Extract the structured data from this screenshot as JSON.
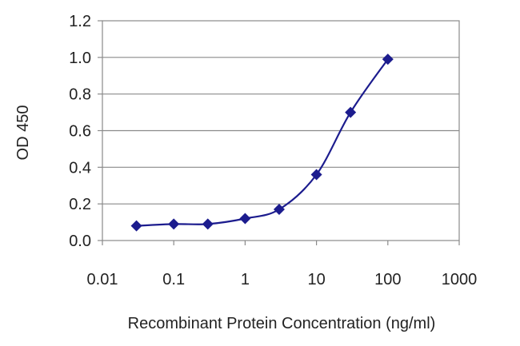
{
  "chart_data": {
    "type": "line",
    "xlabel": "Recombinant Protein Concentration (ng/ml)",
    "ylabel": "OD 450",
    "x_scale": "log",
    "xlim": [
      0.01,
      1000
    ],
    "ylim": [
      0.0,
      1.2
    ],
    "x_ticks": [
      {
        "value": 0.01,
        "label": "0.01"
      },
      {
        "value": 0.1,
        "label": "0.1"
      },
      {
        "value": 1,
        "label": "1"
      },
      {
        "value": 10,
        "label": "10"
      },
      {
        "value": 100,
        "label": "100"
      },
      {
        "value": 1000,
        "label": "1000"
      }
    ],
    "y_ticks": [
      {
        "value": 0.0,
        "label": "0.0"
      },
      {
        "value": 0.2,
        "label": "0.2"
      },
      {
        "value": 0.4,
        "label": "0.4"
      },
      {
        "value": 0.6,
        "label": "0.6"
      },
      {
        "value": 0.8,
        "label": "0.8"
      },
      {
        "value": 1.0,
        "label": "1.0"
      },
      {
        "value": 1.2,
        "label": "1.2"
      }
    ],
    "grid": "horizontal",
    "legend": "none",
    "series": [
      {
        "color": "#1c1c8e",
        "marker": "diamond",
        "x": [
          0.03,
          0.1,
          0.3,
          1,
          3,
          10,
          30,
          100
        ],
        "y": [
          0.08,
          0.09,
          0.09,
          0.12,
          0.17,
          0.36,
          0.7,
          0.99
        ]
      }
    ]
  }
}
